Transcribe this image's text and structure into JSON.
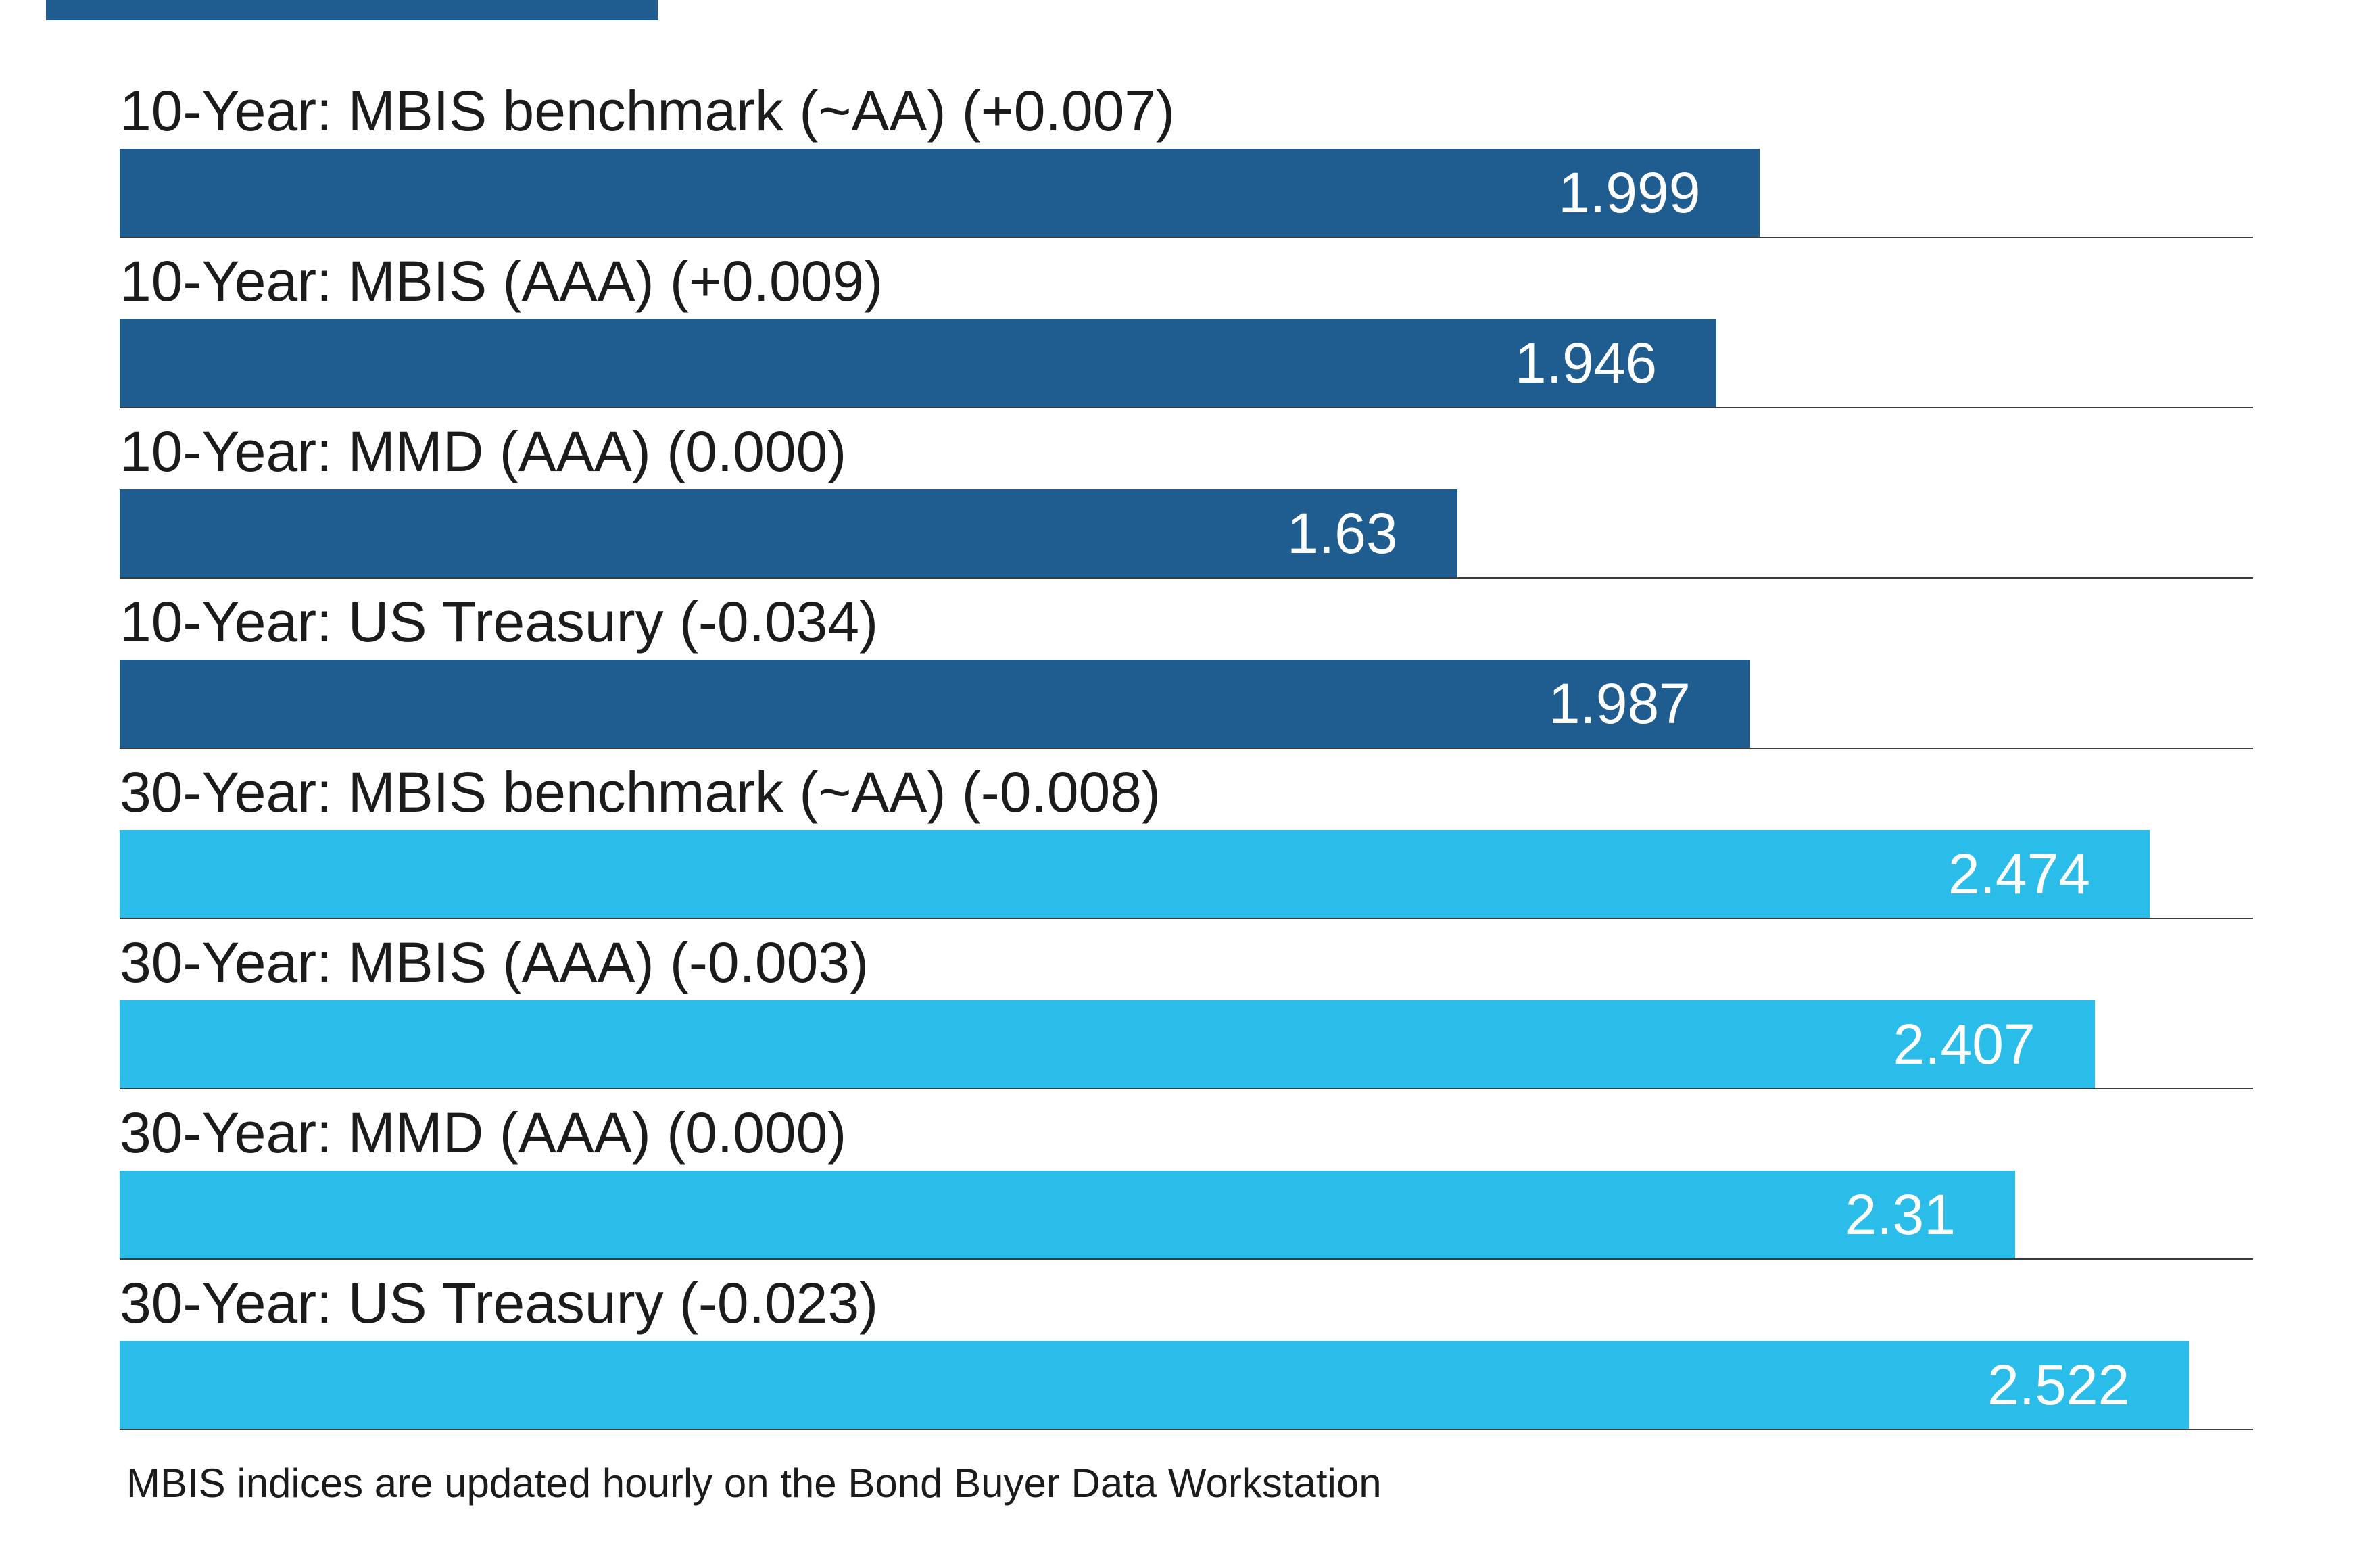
{
  "page": {
    "background": "#ffffff"
  },
  "chart_data": {
    "type": "bar",
    "orientation": "horizontal",
    "title": "",
    "categories": [
      "10-Year: MBIS benchmark (~AA) (+0.007)",
      "10-Year: MBIS (AAA) (+0.009)",
      "10-Year: MMD (AAA) (0.000)",
      "10-Year: US Treasury (-0.034)",
      "30-Year: MBIS benchmark (~AA) (-0.008)",
      "30-Year: MBIS (AAA) (-0.003)",
      "30-Year: MMD (AAA) (0.000)",
      "30-Year: US Treasury (-0.023)"
    ],
    "values": [
      1.999,
      1.946,
      1.63,
      1.987,
      2.474,
      2.407,
      2.31,
      2.522
    ],
    "value_labels": [
      "1.999",
      "1.946",
      "1.63",
      "1.987",
      "2.474",
      "2.407",
      "2.31",
      "2.522"
    ],
    "changes": [
      "+0.007",
      "+0.009",
      "0.000",
      "-0.034",
      "-0.008",
      "-0.003",
      "0.000",
      "-0.023"
    ],
    "groups": [
      "10-Year",
      "10-Year",
      "10-Year",
      "10-Year",
      "30-Year",
      "30-Year",
      "30-Year",
      "30-Year"
    ],
    "bar_colors": [
      "#1f5d90",
      "#1f5d90",
      "#1f5d90",
      "#1f5d90",
      "#2bbde9",
      "#2bbde9",
      "#2bbde9",
      "#2bbde9"
    ],
    "colors": {
      "ten_year": "#1f5d90",
      "thirty_year": "#2bbde9",
      "value_text": "#ffffff",
      "label_text": "#1b1b1b",
      "separator": "#3b3b3b"
    },
    "xlim": [
      0,
      2.6
    ],
    "grid": false,
    "legend": "none",
    "axes_visible": false,
    "footnote": "MBIS indices are updated hourly on the Bond Buyer Data Workstation"
  }
}
